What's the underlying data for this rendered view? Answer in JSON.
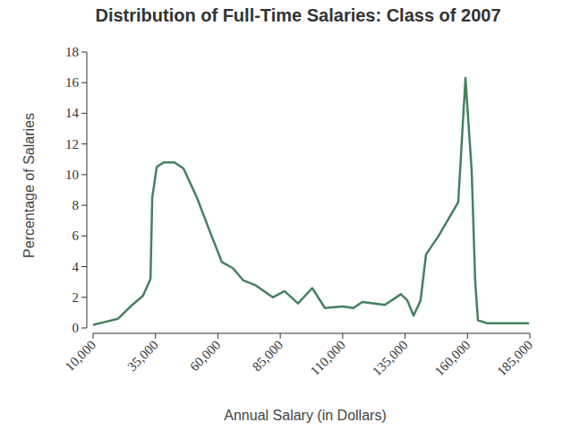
{
  "chart_data": {
    "type": "line",
    "title": "Distribution of Full-Time Salaries: Class of 2007",
    "x_label": "Annual Salary (in Dollars)",
    "y_label": "Percentage of Salaries",
    "x": [
      10000,
      15000,
      20000,
      25000,
      30000,
      33000,
      33700,
      35500,
      38300,
      42600,
      46200,
      51600,
      57000,
      61600,
      66000,
      70200,
      74900,
      82000,
      86700,
      92100,
      97800,
      102900,
      110000,
      114300,
      117900,
      126900,
      133300,
      135900,
      138400,
      141200,
      143400,
      148400,
      156300,
      159200,
      161700,
      163100,
      164200,
      168100,
      184300
    ],
    "series": [
      {
        "name": "Percentage of Salaries",
        "color": "#44815f",
        "values": [
          0.2,
          0.4,
          0.6,
          1.4,
          2.1,
          3.2,
          8.5,
          10.5,
          10.8,
          10.8,
          10.4,
          8.5,
          6.2,
          4.3,
          3.9,
          3.1,
          2.8,
          2.0,
          2.4,
          1.6,
          2.6,
          1.3,
          1.4,
          1.3,
          1.7,
          1.5,
          2.2,
          1.8,
          0.8,
          1.8,
          4.8,
          6.0,
          8.2,
          16.3,
          10.2,
          3.0,
          0.5,
          0.3,
          0.3
        ]
      }
    ],
    "xlim": [
      10000,
      185000
    ],
    "ylim": [
      0,
      18
    ],
    "xticks": [
      {
        "value": 10000,
        "label": "10,000"
      },
      {
        "value": 35000,
        "label": "35,000"
      },
      {
        "value": 60000,
        "label": "60,000"
      },
      {
        "value": 85000,
        "label": "85,000"
      },
      {
        "value": 110000,
        "label": "110,000"
      },
      {
        "value": 135000,
        "label": "135,000"
      },
      {
        "value": 160000,
        "label": "160,000"
      },
      {
        "value": 185000,
        "label": "185,000"
      }
    ],
    "yticks": [
      0,
      2,
      4,
      6,
      8,
      10,
      12,
      14,
      16,
      18
    ],
    "grid": false
  }
}
